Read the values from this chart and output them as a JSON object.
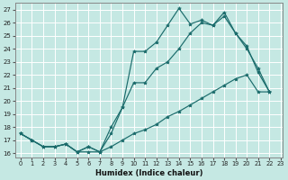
{
  "xlabel": "Humidex (Indice chaleur)",
  "background_color": "#c5e8e3",
  "grid_color": "#ffffff",
  "line_color": "#1a6b6b",
  "x": [
    0,
    1,
    2,
    3,
    4,
    5,
    6,
    7,
    8,
    9,
    10,
    11,
    12,
    13,
    14,
    15,
    16,
    17,
    18,
    19,
    20,
    21,
    22
  ],
  "line1": [
    17.5,
    17.0,
    16.5,
    16.5,
    16.7,
    16.1,
    16.5,
    16.1,
    18.0,
    19.5,
    23.8,
    23.8,
    24.5,
    25.8,
    27.1,
    25.9,
    26.2,
    25.8,
    26.8,
    25.2,
    24.2,
    22.2,
    20.7
  ],
  "line2": [
    17.5,
    17.0,
    16.5,
    16.5,
    16.7,
    16.1,
    16.5,
    16.1,
    17.5,
    19.5,
    21.4,
    21.4,
    22.5,
    23.0,
    24.0,
    25.2,
    26.0,
    25.8,
    26.5,
    25.2,
    24.0,
    22.5,
    20.7
  ],
  "line3": [
    17.5,
    17.0,
    16.5,
    16.5,
    16.7,
    16.1,
    16.1,
    16.1,
    16.5,
    17.0,
    17.5,
    17.8,
    18.2,
    18.8,
    19.2,
    19.7,
    20.2,
    20.7,
    21.2,
    21.7,
    22.0,
    20.7,
    20.7
  ],
  "ylim": [
    15.7,
    27.5
  ],
  "xlim": [
    -0.5,
    23.2
  ],
  "yticks": [
    16,
    17,
    18,
    19,
    20,
    21,
    22,
    23,
    24,
    25,
    26,
    27
  ],
  "xticks": [
    0,
    1,
    2,
    3,
    4,
    5,
    6,
    7,
    8,
    9,
    10,
    11,
    12,
    13,
    14,
    15,
    16,
    17,
    18,
    19,
    20,
    21,
    22,
    23
  ]
}
